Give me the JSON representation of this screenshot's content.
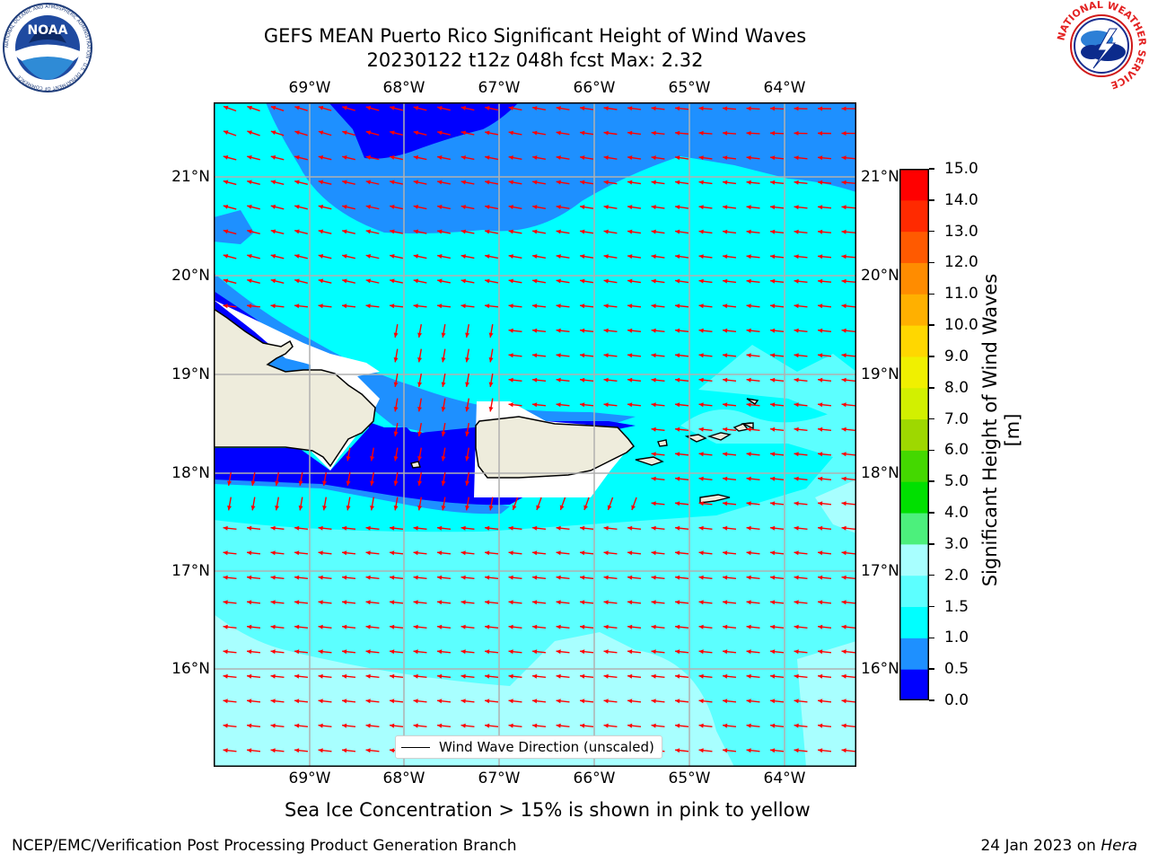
{
  "header": {
    "title_line1": "GEFS MEAN Puerto Rico Significant Height of Wind Waves",
    "title_line2": "20230122 t12z 048h fcst   Max: 2.32",
    "logo_left_text": "NOAA",
    "logo_left_ring": "NATIONAL OCEANIC AND ATMOSPHERIC ADMINISTRATION · U.S. DEPARTMENT OF COMMERCE",
    "logo_right_ring": "NATIONAL WEATHER SERVICE"
  },
  "map": {
    "lon_labels": [
      "69°W",
      "68°W",
      "67°W",
      "66°W",
      "65°W",
      "64°W"
    ],
    "lat_labels": [
      "21°N",
      "20°N",
      "19°N",
      "18°N",
      "17°N",
      "16°N"
    ],
    "lon_range": [
      -70.0,
      -63.25
    ],
    "lat_range": [
      15.0,
      21.75
    ],
    "gridlines": true,
    "legend_label": "Wind Wave Direction (unscaled)",
    "legend_placement": "bottom-center",
    "arrow_color": "#ff0000",
    "land_color": "#eeecdc",
    "ice_mask_color": "#ffffff",
    "predominant_wave_direction": "westward"
  },
  "colorbar": {
    "label": "Significant Height of Wind Waves [m]",
    "ticks": [
      "0.0",
      "0.5",
      "1.0",
      "1.5",
      "2.0",
      "3.0",
      "4.0",
      "5.0",
      "6.0",
      "7.0",
      "8.0",
      "9.0",
      "10.0",
      "11.0",
      "12.0",
      "13.0",
      "14.0",
      "15.0"
    ],
    "levels": [
      0.0,
      0.5,
      1.0,
      1.5,
      2.0,
      3.0,
      4.0,
      5.0,
      6.0,
      7.0,
      8.0,
      9.0,
      10.0,
      11.0,
      12.0,
      13.0,
      14.0,
      15.0
    ],
    "colors": [
      "#0000ff",
      "#1e90ff",
      "#00ffff",
      "#5cffff",
      "#a8ffff",
      "#4cf07c",
      "#00e000",
      "#44d800",
      "#9ed800",
      "#d2f000",
      "#f0f000",
      "#ffd700",
      "#ffb000",
      "#ff8c00",
      "#ff5a00",
      "#ff2a00",
      "#ff0000"
    ]
  },
  "notes": {
    "sea_ice": "Sea Ice Concentration > 15% is shown in pink to yellow"
  },
  "footer": {
    "left": "NCEP/EMC/Verification Post Processing Product Generation Branch",
    "right_date": "24 Jan 2023 on ",
    "right_host": "Hera"
  }
}
